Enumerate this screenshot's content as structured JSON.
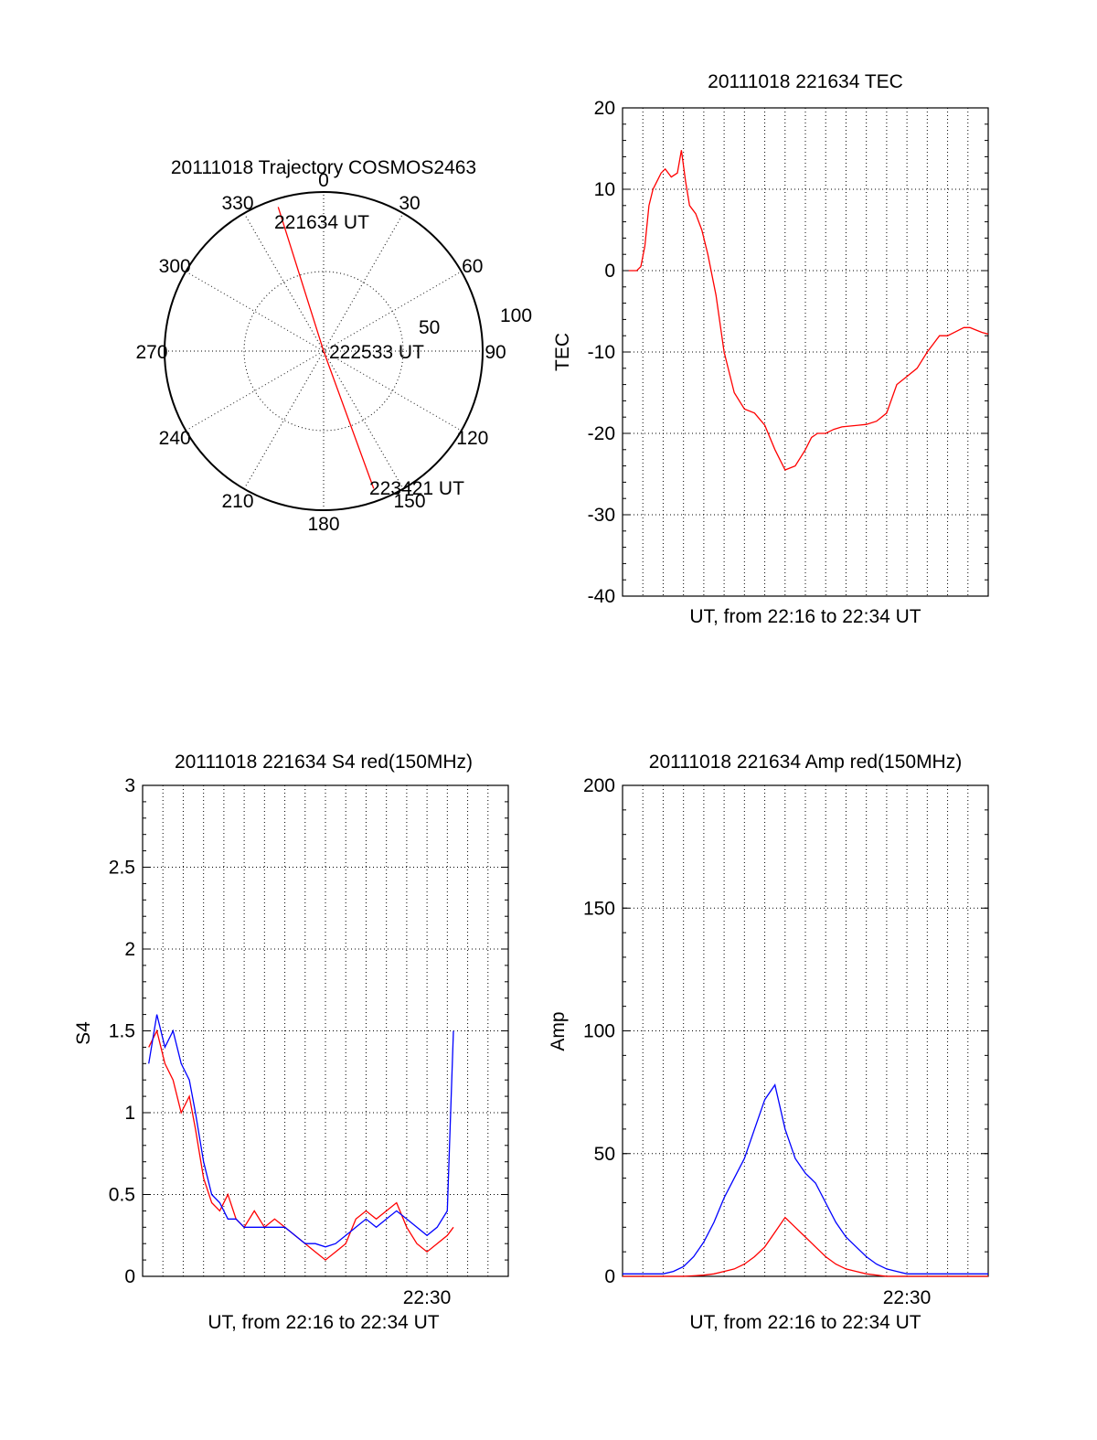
{
  "chart_data": [
    {
      "type": "polar",
      "title": "20111018 Trajectory COSMOS2463",
      "angle_labels": [
        "0",
        "30",
        "60",
        "90",
        "120",
        "150",
        "180",
        "210",
        "240",
        "270",
        "300",
        "330"
      ],
      "radius_labels": [
        "50",
        "100"
      ],
      "rmax": 100,
      "grid": true,
      "series": [
        {
          "color": "#ff0000",
          "points": [
            [
              -17.5,
              95
            ],
            [
              0,
              0
            ],
            [
              160,
              92
            ]
          ]
        }
      ],
      "annotations": [
        {
          "text": "221634 UT"
        },
        {
          "text": "222533 UT"
        },
        {
          "text": "223421 UT"
        }
      ]
    },
    {
      "type": "line",
      "title": "20111018 221634 TEC",
      "xlabel": "UT, from 22:16 to 22:34 UT",
      "ylabel": "TEC",
      "xlim": [
        0,
        18
      ],
      "ylim": [
        -40,
        20
      ],
      "yticks": [
        "20",
        "10",
        "0",
        "-10",
        "-20",
        "-30",
        "-40"
      ],
      "grid": true,
      "series": [
        {
          "color": "#ff0000",
          "x": [
            0.3,
            0.7,
            0.9,
            1.1,
            1.3,
            1.5,
            1.7,
            1.9,
            2.1,
            2.4,
            2.7,
            2.9,
            3.1,
            3.3,
            3.6,
            3.9,
            4.2,
            4.6,
            5.0,
            5.5,
            6.0,
            6.5,
            7.0,
            7.5,
            8.0,
            8.5,
            9.0,
            9.3,
            9.6,
            10.0,
            10.4,
            10.8,
            11.2,
            11.6,
            12.0,
            12.5,
            13.0,
            13.5,
            14.0,
            14.5,
            15.0,
            15.3,
            15.6,
            16.0,
            16.4,
            16.8,
            17.1,
            17.4,
            17.7,
            18.0
          ],
          "values": [
            0,
            0,
            0.5,
            3,
            8,
            10,
            11,
            12,
            12.5,
            11.5,
            12,
            14.8,
            11,
            8,
            7,
            5,
            2,
            -3,
            -10,
            -15,
            -17,
            -17.5,
            -19,
            -22,
            -24.5,
            -24,
            -22,
            -20.5,
            -20,
            -20,
            -19.5,
            -19.2,
            -19.1,
            -19,
            -18.9,
            -18.5,
            -17.5,
            -14,
            -13,
            -12,
            -10,
            -9,
            -8,
            -8,
            -7.5,
            -7,
            -7,
            -7.3,
            -7.6,
            -7.8
          ]
        }
      ]
    },
    {
      "type": "line",
      "title": "20111018 221634 S4 red(150MHz)",
      "xlabel": "UT, from 22:16 to 22:34 UT",
      "ylabel": "S4",
      "xlim": [
        0,
        18
      ],
      "ylim": [
        0,
        3
      ],
      "yticks": [
        "0",
        "0.5",
        "1",
        "1.5",
        "2",
        "2.5",
        "3"
      ],
      "xtick_label": "22:30",
      "xtick_value": 14,
      "grid": true,
      "series": [
        {
          "color": "#ff0000",
          "x": [
            0.3,
            0.7,
            1.1,
            1.5,
            1.9,
            2.3,
            2.6,
            3.0,
            3.4,
            3.8,
            4.2,
            4.6,
            5.0,
            5.5,
            6.0,
            6.5,
            7.0,
            7.5,
            8.0,
            8.5,
            9.0,
            9.5,
            10.0,
            10.5,
            11.0,
            11.5,
            12.0,
            12.5,
            13.0,
            13.5,
            14.0,
            14.5,
            15.0,
            15.3
          ],
          "values": [
            1.4,
            1.5,
            1.3,
            1.2,
            1.0,
            1.1,
            0.9,
            0.6,
            0.45,
            0.4,
            0.5,
            0.35,
            0.3,
            0.4,
            0.3,
            0.35,
            0.3,
            0.25,
            0.2,
            0.15,
            0.1,
            0.15,
            0.2,
            0.35,
            0.4,
            0.35,
            0.4,
            0.45,
            0.3,
            0.2,
            0.15,
            0.2,
            0.25,
            0.3
          ]
        },
        {
          "color": "#0000ff",
          "x": [
            0.3,
            0.7,
            1.1,
            1.5,
            1.9,
            2.3,
            2.6,
            3.0,
            3.4,
            3.8,
            4.2,
            4.6,
            5.0,
            5.5,
            6.0,
            6.5,
            7.0,
            7.5,
            8.0,
            8.5,
            9.0,
            9.5,
            10.0,
            10.5,
            11.0,
            11.5,
            12.0,
            12.5,
            13.0,
            13.5,
            14.0,
            14.5,
            15.0,
            15.3
          ],
          "values": [
            1.3,
            1.6,
            1.4,
            1.5,
            1.3,
            1.2,
            1.0,
            0.7,
            0.5,
            0.45,
            0.35,
            0.35,
            0.3,
            0.3,
            0.3,
            0.3,
            0.3,
            0.25,
            0.2,
            0.2,
            0.18,
            0.2,
            0.25,
            0.3,
            0.35,
            0.3,
            0.35,
            0.4,
            0.35,
            0.3,
            0.25,
            0.3,
            0.4,
            1.5
          ]
        }
      ]
    },
    {
      "type": "line",
      "title": "20111018 221634 Amp red(150MHz)",
      "xlabel": "UT, from 22:16 to 22:34 UT",
      "ylabel": "Amp",
      "xlim": [
        0,
        18
      ],
      "ylim": [
        0,
        200
      ],
      "yticks": [
        "0",
        "50",
        "100",
        "150",
        "200"
      ],
      "xtick_label": "22:30",
      "xtick_value": 14,
      "grid": true,
      "series": [
        {
          "color": "#0000ff",
          "x": [
            0,
            1,
            2,
            2.5,
            3,
            3.5,
            4,
            4.5,
            5,
            5.5,
            6,
            6.5,
            7,
            7.5,
            8,
            8.5,
            9,
            9.5,
            10,
            10.5,
            11,
            11.5,
            12,
            12.5,
            13,
            13.5,
            14,
            15,
            16,
            17,
            18
          ],
          "values": [
            1,
            1,
            1,
            2,
            4,
            8,
            14,
            22,
            32,
            40,
            48,
            60,
            72,
            78,
            60,
            48,
            42,
            38,
            30,
            22,
            16,
            12,
            8,
            5,
            3,
            2,
            1,
            1,
            1,
            1,
            1
          ]
        },
        {
          "color": "#ff0000",
          "x": [
            0,
            3,
            4,
            4.5,
            5,
            5.5,
            6,
            6.5,
            7,
            7.5,
            8,
            8.5,
            9,
            9.5,
            10,
            10.5,
            11,
            11.5,
            12,
            13,
            18
          ],
          "values": [
            0,
            0,
            0.5,
            1,
            2,
            3,
            5,
            8,
            12,
            18,
            24,
            20,
            16,
            12,
            8,
            5,
            3,
            2,
            1,
            0,
            0
          ]
        }
      ]
    }
  ]
}
